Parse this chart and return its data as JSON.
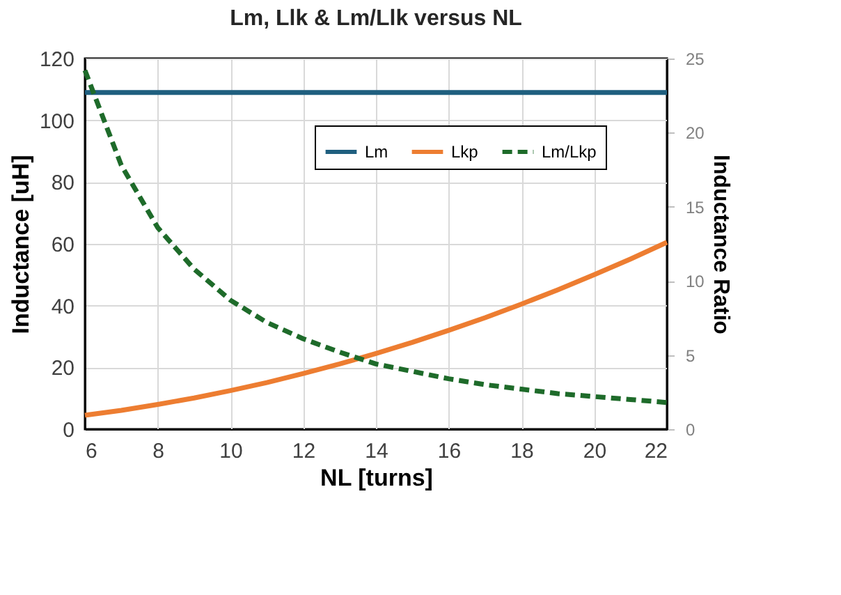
{
  "chart_data": {
    "type": "line",
    "title": "Lm, Llk & Lm/Llk versus NL",
    "xlabel": "NL [turns]",
    "ylabel": "Inductance [uH]",
    "y2label": "Inductance Ratio",
    "x": [
      6,
      7,
      8,
      9,
      10,
      11,
      12,
      13,
      14,
      15,
      16,
      17,
      18,
      19,
      20,
      21,
      22
    ],
    "series": [
      {
        "name": "Lm",
        "color": "#1f5f7f",
        "line_style": "solid",
        "values": [
          109,
          109,
          109,
          109,
          109,
          109,
          109,
          109,
          109,
          109,
          109,
          109,
          109,
          109,
          109,
          109,
          109
        ]
      },
      {
        "name": "Lkp",
        "color": "#ed7d31",
        "line_style": "solid",
        "values": [
          4.5,
          6.1,
          8,
          10.1,
          12.5,
          15.1,
          18,
          21.1,
          24.5,
          28.1,
          32,
          36.1,
          40.5,
          45.1,
          50,
          55.1,
          60.5
        ]
      },
      {
        "name": "Lm/Lkp",
        "color": "#1e6b2a",
        "line_style": "dashed",
        "axis": "y2",
        "values": [
          24.2,
          17.8,
          13.6,
          10.8,
          8.7,
          7.2,
          6.1,
          5.2,
          4.4,
          3.9,
          3.4,
          3.0,
          2.7,
          2.4,
          2.2,
          2.0,
          1.8
        ]
      }
    ],
    "xlim": [
      6,
      22
    ],
    "xticks": [
      6,
      8,
      10,
      12,
      14,
      16,
      18,
      20,
      22
    ],
    "ylim": [
      0,
      120
    ],
    "yticks": [
      0,
      20,
      40,
      60,
      80,
      100,
      120
    ],
    "y2lim": [
      0,
      25
    ],
    "y2ticks": [
      0,
      5,
      10,
      15,
      20,
      25
    ],
    "grid": true,
    "legend": "top right"
  }
}
